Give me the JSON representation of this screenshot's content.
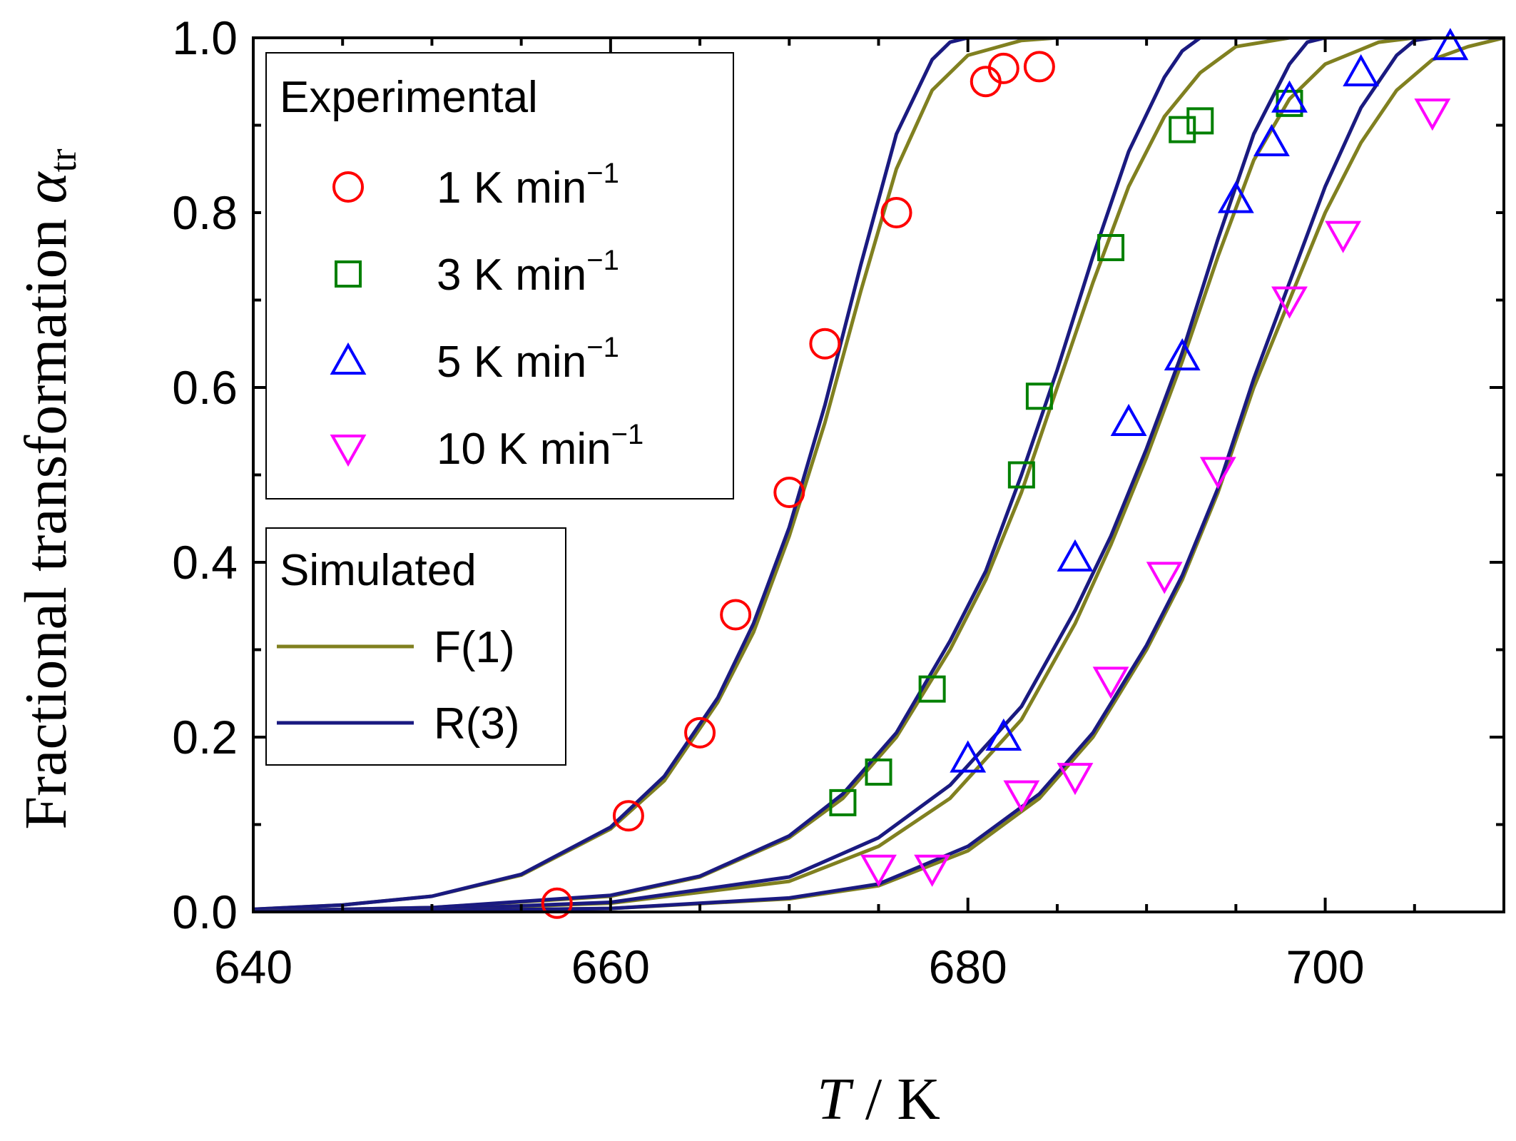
{
  "chart_data": {
    "type": "scatter",
    "xlabel": {
      "italic": "T",
      "rest": " / K"
    },
    "ylabel": {
      "main": "Fractional transformation ",
      "symbol": "α",
      "subscript": "tr"
    },
    "xlim": [
      640,
      710
    ],
    "ylim": [
      0.0,
      1.0
    ],
    "xticks": [
      640,
      660,
      680,
      700
    ],
    "xtick_labels": [
      "640",
      "660",
      "680",
      "700"
    ],
    "yticks": [
      0.0,
      0.2,
      0.4,
      0.6,
      0.8,
      1.0
    ],
    "ytick_labels": [
      "0.0",
      "0.2",
      "0.4",
      "0.6",
      "0.8",
      "1.0"
    ],
    "legend_experimental": {
      "title": "Experimental",
      "entries": [
        {
          "value": "1",
          "unit": " K min",
          "exp": "−1"
        },
        {
          "value": "3",
          "unit": " K min",
          "exp": "−1"
        },
        {
          "value": "5",
          "unit": " K min",
          "exp": "−1"
        },
        {
          "value": "10",
          "unit": " K min",
          "exp": "−1"
        }
      ]
    },
    "legend_simulated": {
      "title": "Simulated",
      "entries": [
        "F(1)",
        "R(3)"
      ]
    },
    "colors": {
      "F1": "#808020",
      "R3": "#1a1a80",
      "rate1": "#ff0000",
      "rate3": "#008000",
      "rate5": "#0000ff",
      "rate10": "#ff00ff"
    },
    "series": [
      {
        "name": "1 K min⁻¹",
        "marker": "circle",
        "color": "#ff0000",
        "points": [
          [
            657,
            0.01
          ],
          [
            661,
            0.11
          ],
          [
            665,
            0.205
          ],
          [
            667,
            0.34
          ],
          [
            670,
            0.48
          ],
          [
            672,
            0.65
          ],
          [
            676,
            0.8
          ],
          [
            681,
            0.95
          ],
          [
            682,
            0.965
          ],
          [
            684,
            0.967
          ]
        ]
      },
      {
        "name": "3 K min⁻¹",
        "marker": "square",
        "color": "#008000",
        "points": [
          [
            673,
            0.125
          ],
          [
            675,
            0.16
          ],
          [
            678,
            0.255
          ],
          [
            683,
            0.5
          ],
          [
            684,
            0.59
          ],
          [
            688,
            0.76
          ],
          [
            692,
            0.895
          ],
          [
            693,
            0.905
          ],
          [
            698,
            0.925
          ]
        ]
      },
      {
        "name": "5 K min⁻¹",
        "marker": "triangle-up",
        "color": "#0000ff",
        "points": [
          [
            680,
            0.175
          ],
          [
            682,
            0.2
          ],
          [
            686,
            0.405
          ],
          [
            689,
            0.56
          ],
          [
            692,
            0.635
          ],
          [
            695,
            0.815
          ],
          [
            697,
            0.88
          ],
          [
            698,
            0.93
          ],
          [
            702,
            0.96
          ],
          [
            707,
            0.99
          ]
        ]
      },
      {
        "name": "10 K min⁻¹",
        "marker": "triangle-down",
        "color": "#ff00ff",
        "points": [
          [
            675,
            0.05
          ],
          [
            678,
            0.05
          ],
          [
            683,
            0.135
          ],
          [
            686,
            0.155
          ],
          [
            688,
            0.265
          ],
          [
            691,
            0.385
          ],
          [
            694,
            0.505
          ],
          [
            698,
            0.7
          ],
          [
            701,
            0.775
          ],
          [
            706,
            0.915
          ]
        ]
      }
    ],
    "curves": [
      {
        "model": "F(1)",
        "color": "#808020",
        "points": [
          [
            640,
            0.003
          ],
          [
            645,
            0.008
          ],
          [
            650,
            0.018
          ],
          [
            655,
            0.042
          ],
          [
            660,
            0.095
          ],
          [
            663,
            0.15
          ],
          [
            666,
            0.24
          ],
          [
            668,
            0.32
          ],
          [
            670,
            0.43
          ],
          [
            672,
            0.56
          ],
          [
            674,
            0.71
          ],
          [
            676,
            0.85
          ],
          [
            678,
            0.94
          ],
          [
            680,
            0.98
          ],
          [
            683,
            0.997
          ],
          [
            685,
            1.0
          ],
          [
            710,
            1.0
          ]
        ]
      },
      {
        "model": "R(3)",
        "color": "#1a1a80",
        "points": [
          [
            640,
            0.003
          ],
          [
            645,
            0.008
          ],
          [
            650,
            0.018
          ],
          [
            655,
            0.043
          ],
          [
            660,
            0.097
          ],
          [
            663,
            0.155
          ],
          [
            666,
            0.245
          ],
          [
            668,
            0.33
          ],
          [
            670,
            0.44
          ],
          [
            672,
            0.58
          ],
          [
            674,
            0.74
          ],
          [
            676,
            0.89
          ],
          [
            678,
            0.975
          ],
          [
            679,
            0.995
          ],
          [
            680,
            1.0
          ],
          [
            710,
            1.0
          ]
        ]
      },
      {
        "model": "F(1)",
        "color": "#808020",
        "points": [
          [
            640,
            0.001
          ],
          [
            650,
            0.005
          ],
          [
            660,
            0.018
          ],
          [
            665,
            0.04
          ],
          [
            670,
            0.085
          ],
          [
            673,
            0.13
          ],
          [
            676,
            0.2
          ],
          [
            679,
            0.3
          ],
          [
            681,
            0.38
          ],
          [
            683,
            0.48
          ],
          [
            685,
            0.6
          ],
          [
            687,
            0.72
          ],
          [
            689,
            0.83
          ],
          [
            691,
            0.91
          ],
          [
            693,
            0.96
          ],
          [
            695,
            0.99
          ],
          [
            698,
            1.0
          ],
          [
            710,
            1.0
          ]
        ]
      },
      {
        "model": "R(3)",
        "color": "#1a1a80",
        "points": [
          [
            640,
            0.001
          ],
          [
            650,
            0.005
          ],
          [
            660,
            0.019
          ],
          [
            665,
            0.041
          ],
          [
            670,
            0.087
          ],
          [
            673,
            0.135
          ],
          [
            676,
            0.205
          ],
          [
            679,
            0.31
          ],
          [
            681,
            0.39
          ],
          [
            683,
            0.5
          ],
          [
            685,
            0.62
          ],
          [
            687,
            0.75
          ],
          [
            689,
            0.87
          ],
          [
            691,
            0.955
          ],
          [
            692,
            0.985
          ],
          [
            693,
            1.0
          ],
          [
            710,
            1.0
          ]
        ]
      },
      {
        "model": "F(1)",
        "color": "#808020",
        "points": [
          [
            640,
            0.0008
          ],
          [
            650,
            0.003
          ],
          [
            660,
            0.01
          ],
          [
            670,
            0.035
          ],
          [
            675,
            0.075
          ],
          [
            679,
            0.13
          ],
          [
            683,
            0.22
          ],
          [
            686,
            0.33
          ],
          [
            688,
            0.42
          ],
          [
            690,
            0.52
          ],
          [
            692,
            0.63
          ],
          [
            694,
            0.75
          ],
          [
            696,
            0.86
          ],
          [
            698,
            0.93
          ],
          [
            700,
            0.97
          ],
          [
            703,
            0.995
          ],
          [
            705,
            1.0
          ],
          [
            710,
            1.0
          ]
        ]
      },
      {
        "model": "R(3)",
        "color": "#1a1a80",
        "points": [
          [
            640,
            0.0008
          ],
          [
            650,
            0.003
          ],
          [
            660,
            0.011
          ],
          [
            670,
            0.04
          ],
          [
            675,
            0.085
          ],
          [
            679,
            0.145
          ],
          [
            683,
            0.235
          ],
          [
            686,
            0.345
          ],
          [
            688,
            0.43
          ],
          [
            690,
            0.53
          ],
          [
            692,
            0.64
          ],
          [
            694,
            0.77
          ],
          [
            696,
            0.89
          ],
          [
            698,
            0.97
          ],
          [
            699,
            0.995
          ],
          [
            700,
            1.0
          ],
          [
            710,
            1.0
          ]
        ]
      },
      {
        "model": "F(1)",
        "color": "#808020",
        "points": [
          [
            640,
            0.0004
          ],
          [
            650,
            0.0015
          ],
          [
            660,
            0.004
          ],
          [
            670,
            0.015
          ],
          [
            675,
            0.03
          ],
          [
            680,
            0.07
          ],
          [
            684,
            0.13
          ],
          [
            687,
            0.2
          ],
          [
            690,
            0.3
          ],
          [
            692,
            0.38
          ],
          [
            694,
            0.48
          ],
          [
            696,
            0.6
          ],
          [
            698,
            0.7
          ],
          [
            700,
            0.8
          ],
          [
            702,
            0.88
          ],
          [
            704,
            0.94
          ],
          [
            706,
            0.975
          ],
          [
            708,
            0.99
          ],
          [
            710,
            1.0
          ]
        ]
      },
      {
        "model": "R(3)",
        "color": "#1a1a80",
        "points": [
          [
            640,
            0.0004
          ],
          [
            650,
            0.0015
          ],
          [
            660,
            0.004
          ],
          [
            670,
            0.016
          ],
          [
            675,
            0.032
          ],
          [
            680,
            0.075
          ],
          [
            684,
            0.135
          ],
          [
            687,
            0.205
          ],
          [
            690,
            0.305
          ],
          [
            692,
            0.385
          ],
          [
            694,
            0.485
          ],
          [
            696,
            0.61
          ],
          [
            698,
            0.72
          ],
          [
            700,
            0.83
          ],
          [
            702,
            0.92
          ],
          [
            704,
            0.98
          ],
          [
            705,
            0.997
          ],
          [
            706,
            1.0
          ],
          [
            710,
            1.0
          ]
        ]
      }
    ]
  }
}
